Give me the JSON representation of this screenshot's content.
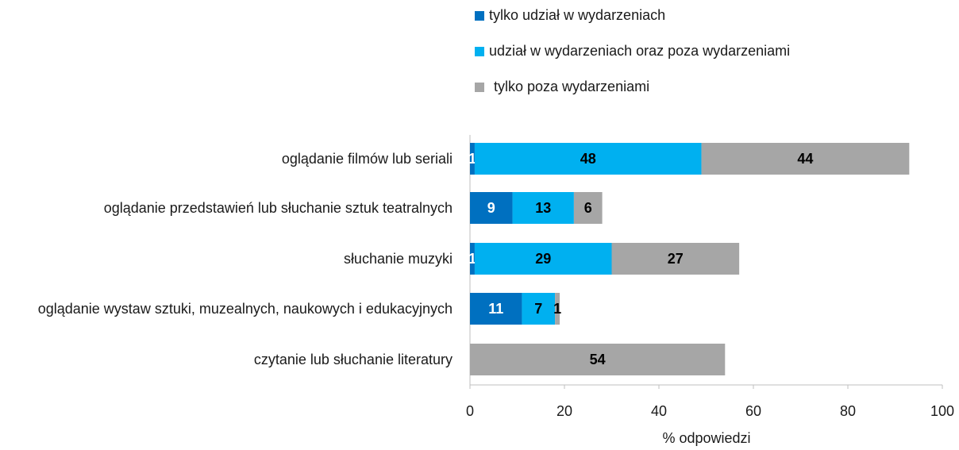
{
  "chart_data": {
    "type": "bar",
    "orientation": "horizontal",
    "stacked": true,
    "categories": [
      "oglądanie filmów lub seriali",
      "oglądanie przedstawień lub słuchanie sztuk teatralnych",
      "słuchanie muzyki",
      "oglądanie wystaw sztuki, muzealnych, naukowych i edukacyjnych",
      "czytanie lub słuchanie literatury"
    ],
    "series": [
      {
        "name": "tylko udział w wydarzeniach",
        "color": "#0070c0",
        "values": [
          1,
          9,
          1,
          11,
          null
        ]
      },
      {
        "name": "udział w wydarzeniach oraz poza wydarzeniami",
        "color": "#00b0f0",
        "values": [
          48,
          13,
          29,
          7,
          null
        ]
      },
      {
        "name": "tylko poza wydarzeniami",
        "color": "#a6a6a6",
        "values": [
          44,
          6,
          27,
          1,
          54
        ]
      }
    ],
    "xlim": [
      0,
      100
    ],
    "xticks": [
      0,
      20,
      40,
      60,
      80,
      100
    ],
    "xlabel": "% odpowiedzi",
    "grid": false,
    "legend": "top"
  }
}
